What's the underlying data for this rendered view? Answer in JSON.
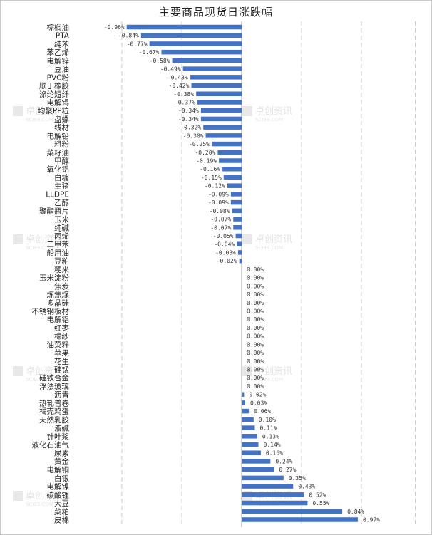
{
  "chart_data": {
    "type": "bar",
    "orientation": "horizontal",
    "title": "主要商品现货日涨跌幅",
    "xlabel": "",
    "ylabel": "",
    "xlim": [
      -1.2,
      1.2
    ],
    "grid": "vertical dashed",
    "legend": "none",
    "bar_color": "#4472C4",
    "categories": [
      "棕榈油",
      "PTA",
      "纯苯",
      "苯乙烯",
      "电解锌",
      "豆油",
      "PVC粉",
      "顺丁橡胶",
      "涤纶短纤",
      "电解锡",
      "均聚PP粒",
      "盘螺",
      "线材",
      "电解铅",
      "粗粉",
      "菜籽油",
      "甲醇",
      "氧化铝",
      "白糖",
      "生猪",
      "LLDPE",
      "乙醇",
      "聚酯瓶片",
      "玉米",
      "纯碱",
      "丙烯",
      "二甲苯",
      "船用油",
      "豆粕",
      "粳米",
      "玉米淀粉",
      "焦炭",
      "炼焦煤",
      "多晶硅",
      "不锈钢板材",
      "电解铝",
      "红枣",
      "棉纱",
      "油菜籽",
      "苹果",
      "花生",
      "硅锰",
      "硅铁合金",
      "浮法玻璃",
      "沥青",
      "热轧普卷",
      "褐壳鸡蛋",
      "天然乳胶",
      "液碱",
      "针叶浆",
      "液化石油气",
      "尿素",
      "黄金",
      "电解铜",
      "白银",
      "电解镍",
      "碳酸锂",
      "大豆",
      "菜粕",
      "皮棉"
    ],
    "values": [
      -0.96,
      -0.84,
      -0.77,
      -0.67,
      -0.58,
      -0.49,
      -0.43,
      -0.42,
      -0.38,
      -0.37,
      -0.34,
      -0.34,
      -0.32,
      -0.3,
      -0.25,
      -0.2,
      -0.19,
      -0.16,
      -0.15,
      -0.12,
      -0.09,
      -0.09,
      -0.08,
      -0.07,
      -0.07,
      -0.05,
      -0.04,
      -0.03,
      -0.02,
      0.0,
      0.0,
      0.0,
      0.0,
      0.0,
      0.0,
      0.0,
      0.0,
      0.0,
      0.0,
      0.0,
      0.0,
      0.0,
      0.0,
      0.0,
      0.02,
      0.03,
      0.06,
      0.1,
      0.11,
      0.13,
      0.14,
      0.16,
      0.24,
      0.27,
      0.35,
      0.43,
      0.52,
      0.55,
      0.84,
      0.97
    ],
    "data_labels": [
      "-0.96%",
      "-0.84%",
      "-0.77%",
      "-0.67%",
      "-0.58%",
      "-0.49%",
      "-0.43%",
      "-0.42%",
      "-0.38%",
      "-0.37%",
      "-0.34%",
      "-0.34%",
      "-0.32%",
      "-0.30%",
      "-0.25%",
      "-0.20%",
      "-0.19%",
      "-0.16%",
      "-0.15%",
      "-0.12%",
      "-0.09%",
      "-0.09%",
      "-0.08%",
      "-0.07%",
      "-0.07%",
      "-0.05%",
      "-0.04%",
      "-0.03%",
      "-0.02%",
      "0.00%",
      "0.00%",
      "0.00%",
      "0.00%",
      "0.00%",
      "0.00%",
      "0.00%",
      "0.00%",
      "0.00%",
      "0.00%",
      "0.00%",
      "0.00%",
      "0.00%",
      "0.00%",
      "0.00%",
      "0.02%",
      "0.03%",
      "0.06%",
      "0.10%",
      "0.11%",
      "0.13%",
      "0.14%",
      "0.16%",
      "0.24%",
      "0.27%",
      "0.35%",
      "0.43%",
      "0.52%",
      "0.55%",
      "0.84%",
      "0.97%"
    ],
    "watermark": {
      "brand": "卓创资讯",
      "site": "SCI99.COM"
    }
  }
}
